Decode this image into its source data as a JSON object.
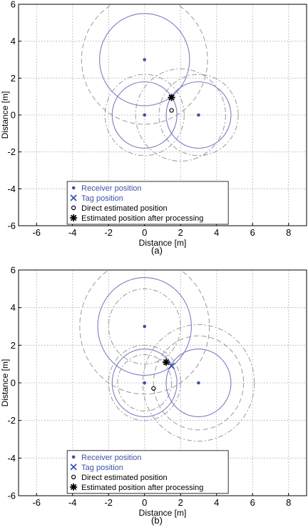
{
  "figure": {
    "panels": [
      {
        "caption": "(a)",
        "chart_data": {
          "type": "scatter",
          "xlabel": "Distance [m]",
          "ylabel": "Distance [m]",
          "xlim": [
            -7,
            9
          ],
          "ylim": [
            -6,
            6
          ],
          "x_ticks": [
            -6,
            -4,
            -2,
            0,
            2,
            4,
            6,
            8
          ],
          "y_ticks": [
            -6,
            -4,
            -2,
            0,
            2,
            4,
            6
          ],
          "grid": true,
          "legend_position": "bottom-center",
          "legend": [
            {
              "label": "Receiver position",
              "marker": "dot",
              "color": "#3b54a8"
            },
            {
              "label": "Tag position",
              "marker": "x",
              "color": "#3b54a8"
            },
            {
              "label": "Direct estimated position",
              "marker": "circle",
              "color": "#000000"
            },
            {
              "label": "Estimated position after processing",
              "marker": "star",
              "color": "#000000"
            }
          ],
          "receivers": [
            {
              "x": 0,
              "y": 3
            },
            {
              "x": 0,
              "y": 0
            },
            {
              "x": 3,
              "y": 0
            }
          ],
          "tag": [
            {
              "x": 1.5,
              "y": 1.0
            }
          ],
          "direct_estimate": [
            {
              "x": 1.5,
              "y": 0.25
            }
          ],
          "processed_estimate": [
            {
              "x": 1.5,
              "y": 0.95
            }
          ],
          "circles": [
            {
              "cx": 0,
              "cy": 3,
              "r": 2.5,
              "style": "solid"
            },
            {
              "cx": 0,
              "cy": 3,
              "r": 3.5,
              "style": "dashed"
            },
            {
              "cx": 0,
              "cy": 0,
              "r": 1.8,
              "style": "solid"
            },
            {
              "cx": 0,
              "cy": 0,
              "r": 2.2,
              "style": "dashdot"
            },
            {
              "cx": 3,
              "cy": 0,
              "r": 1.8,
              "style": "solid"
            },
            {
              "cx": 3,
              "cy": 0,
              "r": 2.2,
              "style": "dashdot"
            },
            {
              "cx": 2,
              "cy": 0,
              "r": 2.5,
              "style": "dashdot"
            }
          ]
        }
      },
      {
        "caption": "(b)",
        "chart_data": {
          "type": "scatter",
          "xlabel": "Distance [m]",
          "ylabel": "Distance [m]",
          "xlim": [
            -7,
            9
          ],
          "ylim": [
            -6,
            6
          ],
          "x_ticks": [
            -6,
            -4,
            -2,
            0,
            2,
            4,
            6,
            8
          ],
          "y_ticks": [
            -6,
            -4,
            -2,
            0,
            2,
            4,
            6
          ],
          "grid": true,
          "legend_position": "bottom-center",
          "legend": [
            {
              "label": "Receiver position",
              "marker": "dot",
              "color": "#3b54a8"
            },
            {
              "label": "Tag position",
              "marker": "x",
              "color": "#3b54a8"
            },
            {
              "label": "Direct estimated position",
              "marker": "circle",
              "color": "#000000"
            },
            {
              "label": "Estimated position after processing",
              "marker": "star",
              "color": "#000000"
            }
          ],
          "receivers": [
            {
              "x": 0,
              "y": 3
            },
            {
              "x": 0,
              "y": 0
            },
            {
              "x": 3,
              "y": 0
            }
          ],
          "tag": [
            {
              "x": 1.5,
              "y": 0.9
            }
          ],
          "direct_estimate": [
            {
              "x": 0.5,
              "y": -0.3
            }
          ],
          "processed_estimate": [
            {
              "x": 1.2,
              "y": 1.1
            }
          ],
          "circles": [
            {
              "cx": 0,
              "cy": 3,
              "r": 2.6,
              "style": "solid"
            },
            {
              "cx": 0,
              "cy": 3,
              "r": 3.6,
              "style": "dashed"
            },
            {
              "cx": 0,
              "cy": 3,
              "r": 2.0,
              "style": "dashdot"
            },
            {
              "cx": 0,
              "cy": 0,
              "r": 1.8,
              "style": "solid"
            },
            {
              "cx": 0,
              "cy": 0,
              "r": 1.5,
              "style": "dashdot"
            },
            {
              "cx": 0,
              "cy": 0,
              "r": 2.0,
              "style": "dashdot"
            },
            {
              "cx": 3,
              "cy": 0,
              "r": 1.8,
              "style": "solid"
            },
            {
              "cx": 3,
              "cy": 0,
              "r": 2.5,
              "style": "dashed"
            },
            {
              "cx": 3,
              "cy": 0,
              "r": 3.1,
              "style": "dashdot"
            }
          ]
        }
      }
    ],
    "colors": {
      "receiver": "#3b54a8",
      "circle_solid": "#7a7ec2",
      "circle_dashed": "#9a9a9a",
      "grid": "#b8b8b8",
      "axis": "#000000"
    }
  }
}
